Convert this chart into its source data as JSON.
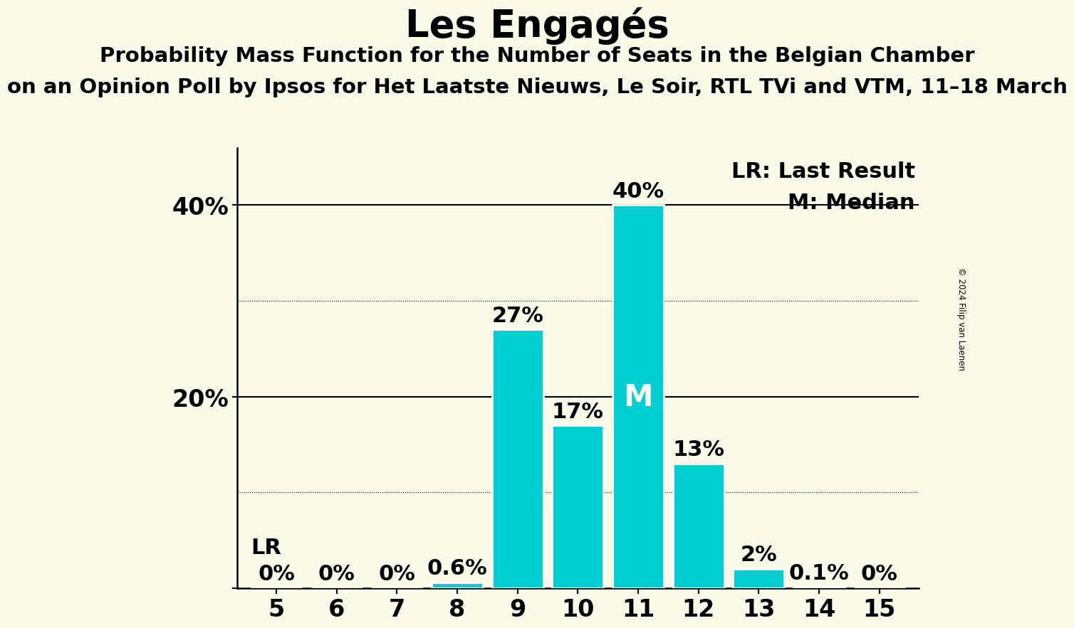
{
  "title": "Les Engagés",
  "subtitle1": "Probability Mass Function for the Number of Seats in the Belgian Chamber",
  "subtitle2": "on an Opinion Poll by Ipsos for Het Laatste Nieuws, Le Soir, RTL TVi and VTM, 11–18 March",
  "copyright": "© 2024 Filip van Laenen",
  "seats": [
    5,
    6,
    7,
    8,
    9,
    10,
    11,
    12,
    13,
    14,
    15
  ],
  "probabilities": [
    0.0,
    0.0,
    0.0,
    0.6,
    27.0,
    17.0,
    40.0,
    13.0,
    2.0,
    0.1,
    0.0
  ],
  "bar_color_hex": "#00CED1",
  "background_color": "#fafae8",
  "median_seat": 11,
  "last_result_seat": 5,
  "ytick_positions": [
    0,
    20,
    40
  ],
  "ytick_labels": [
    "",
    "20%",
    "40%"
  ],
  "dotted_lines": [
    10,
    30
  ],
  "solid_lines": [
    20,
    40
  ],
  "ylim": [
    0,
    46
  ],
  "legend_lr": "LR: Last Result",
  "legend_m": "M: Median",
  "title_fontsize": 38,
  "subtitle_fontsize": 21,
  "tick_fontsize": 24,
  "bar_label_fontsize": 22,
  "median_label_fontsize": 30,
  "lr_label_fontsize": 22
}
